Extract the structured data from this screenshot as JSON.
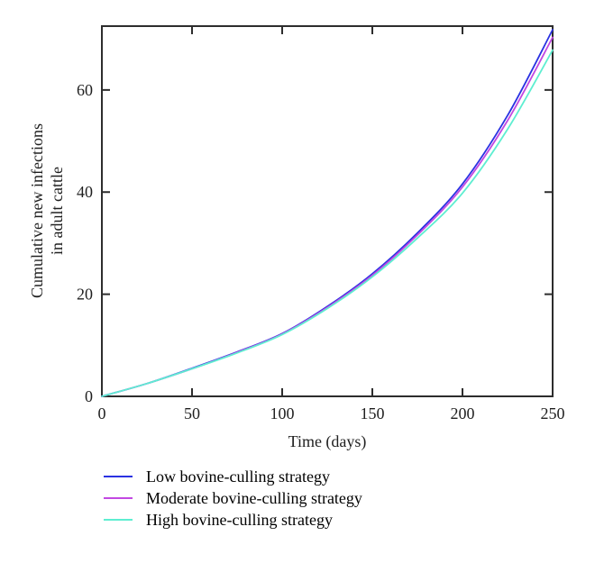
{
  "figure": {
    "background": "#ffffff",
    "axis_color": "#2d2d2d",
    "text_color": "#1f1f1f"
  },
  "chart_data": {
    "type": "line",
    "title": "",
    "xlabel": "Time (days)",
    "ylabel_lines": [
      "Cumulative new infections",
      "in adult cattle"
    ],
    "xlim": [
      0,
      250
    ],
    "ylim": [
      0,
      72.5
    ],
    "x_ticks": [
      0,
      50,
      100,
      150,
      200,
      250
    ],
    "y_ticks": [
      0,
      20,
      40,
      60
    ],
    "grid": false,
    "legend_position": "below-left",
    "line_width": 1.8,
    "x": [
      0,
      25,
      50,
      75,
      100,
      125,
      150,
      175,
      200,
      225,
      250
    ],
    "series": [
      {
        "name": "Low bovine-culling strategy",
        "color": "#2a32e2",
        "values": [
          0,
          2.5,
          5.5,
          8.7,
          12.3,
          17.6,
          24.0,
          32.0,
          41.6,
          55.0,
          71.8
        ]
      },
      {
        "name": "Moderate bovine-culling strategy",
        "color": "#c248e2",
        "values": [
          0,
          2.5,
          5.4,
          8.6,
          12.2,
          17.4,
          23.7,
          31.6,
          41.0,
          54.0,
          70.3
        ]
      },
      {
        "name": "High bovine-culling strategy",
        "color": "#5eeed1",
        "values": [
          0,
          2.5,
          5.4,
          8.5,
          12.1,
          17.2,
          23.4,
          31.0,
          39.8,
          52.3,
          67.8
        ]
      }
    ]
  }
}
